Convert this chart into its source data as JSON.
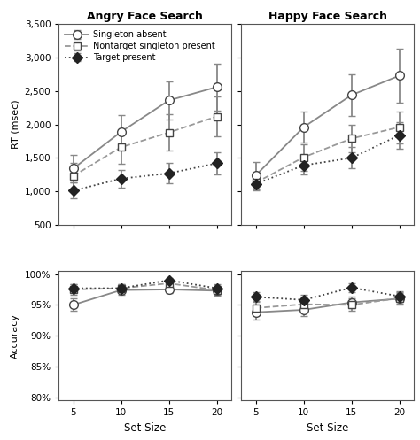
{
  "set_sizes": [
    5,
    10,
    15,
    20
  ],
  "angry_rt": {
    "singleton_absent": [
      1340,
      1890,
      2360,
      2560
    ],
    "singleton_absent_err": [
      200,
      250,
      280,
      350
    ],
    "nontarget_singleton": [
      1230,
      1660,
      1880,
      2120
    ],
    "nontarget_singleton_err": [
      200,
      250,
      270,
      300
    ],
    "target_present": [
      1010,
      1190,
      1270,
      1420
    ],
    "target_present_err": [
      120,
      130,
      150,
      160
    ]
  },
  "happy_rt": {
    "singleton_absent": [
      1240,
      1960,
      2440,
      2730
    ],
    "singleton_absent_err": [
      200,
      230,
      310,
      400
    ],
    "nontarget_singleton": [
      1130,
      1510,
      1790,
      1960
    ],
    "nontarget_singleton_err": [
      120,
      200,
      200,
      240
    ],
    "target_present": [
      1110,
      1390,
      1500,
      1840
    ],
    "target_present_err": [
      80,
      130,
      160,
      200
    ]
  },
  "angry_acc": {
    "singleton_absent": [
      0.95,
      0.974,
      0.975,
      0.973
    ],
    "singleton_absent_err": [
      0.01,
      0.007,
      0.006,
      0.008
    ],
    "nontarget_singleton": [
      0.975,
      0.977,
      0.985,
      0.974
    ],
    "nontarget_singleton_err": [
      0.008,
      0.006,
      0.005,
      0.007
    ],
    "target_present": [
      0.977,
      0.977,
      0.99,
      0.977
    ],
    "target_present_err": [
      0.007,
      0.006,
      0.004,
      0.007
    ]
  },
  "happy_acc": {
    "singleton_absent": [
      0.938,
      0.942,
      0.954,
      0.96
    ],
    "singleton_absent_err": [
      0.012,
      0.01,
      0.009,
      0.009
    ],
    "nontarget_singleton": [
      0.945,
      0.951,
      0.95,
      0.961
    ],
    "nontarget_singleton_err": [
      0.012,
      0.009,
      0.01,
      0.009
    ],
    "target_present": [
      0.963,
      0.958,
      0.978,
      0.964
    ],
    "target_present_err": [
      0.008,
      0.008,
      0.007,
      0.008
    ]
  },
  "titles": [
    "Angry Face Search",
    "Happy Face Search"
  ],
  "rt_ylabel": "RT (msec)",
  "acc_ylabel": "Accuracy",
  "xlabel": "Set Size",
  "ylim_rt": [
    500,
    3500
  ],
  "yticks_rt": [
    500,
    1000,
    1500,
    2000,
    2500,
    3000,
    3500
  ],
  "ylim_acc": [
    0.795,
    1.005
  ],
  "yticks_acc": [
    0.8,
    0.85,
    0.9,
    0.95,
    1.0
  ],
  "ytick_labels_acc": [
    "80%",
    "85%",
    "90%",
    "95%",
    "100%"
  ],
  "legend_labels": [
    "Singleton absent",
    "Nontarget singleton present",
    "Target present"
  ],
  "line_color_solid": "#888888",
  "line_color_dashed": "#999999",
  "line_color_dotted": "#444444",
  "ecolor": "#888888",
  "background_color": "#ffffff"
}
